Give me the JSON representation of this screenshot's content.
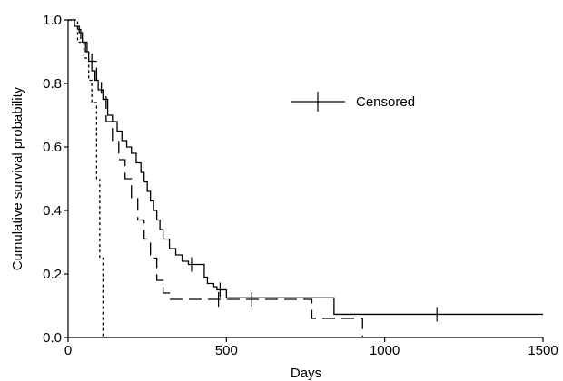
{
  "chart_data": {
    "type": "line",
    "subtype": "kaplan-meier step curves",
    "title": "",
    "xlabel": "Days",
    "ylabel": "Cumulative survival probability",
    "xlim": [
      0,
      1500
    ],
    "ylim": [
      0,
      1.0
    ],
    "x_ticks": [
      0,
      500,
      1000,
      1500
    ],
    "x_tick_labels": [
      "0",
      "500",
      "1000",
      "1500"
    ],
    "y_ticks": [
      0,
      0.2,
      0.4,
      0.6,
      0.8,
      1.0
    ],
    "y_tick_labels": [
      "0.0",
      "0.2",
      "0.4",
      "0.6",
      "0.8",
      "1.0"
    ],
    "grid": false,
    "legend": {
      "position": "upper-center",
      "entries": [
        {
          "label": "Censored",
          "marker": "vertical-tick"
        }
      ]
    },
    "series": [
      {
        "style": "solid",
        "color": "#000000",
        "x": [
          0,
          20,
          35,
          45,
          55,
          65,
          75,
          85,
          95,
          110,
          125,
          140,
          155,
          170,
          185,
          200,
          215,
          230,
          240,
          250,
          260,
          270,
          280,
          290,
          300,
          320,
          340,
          360,
          380,
          430,
          440,
          460,
          470,
          490,
          500,
          840,
          1500
        ],
        "y": [
          1.0,
          0.98,
          0.96,
          0.93,
          0.9,
          0.87,
          0.84,
          0.81,
          0.78,
          0.75,
          0.7,
          0.68,
          0.65,
          0.62,
          0.6,
          0.58,
          0.55,
          0.52,
          0.49,
          0.46,
          0.43,
          0.4,
          0.37,
          0.34,
          0.31,
          0.28,
          0.26,
          0.24,
          0.23,
          0.19,
          0.17,
          0.16,
          0.15,
          0.15,
          0.125,
          0.073,
          0.073
        ],
        "censor_x": [
          390,
          480,
          1165
        ],
        "censor_y": [
          0.23,
          0.15,
          0.073
        ]
      },
      {
        "style": "long-dash",
        "color": "#000000",
        "x": [
          0,
          20,
          40,
          60,
          75,
          90,
          105,
          120,
          140,
          160,
          180,
          200,
          220,
          240,
          260,
          280,
          300,
          320,
          770,
          860,
          930
        ],
        "y": [
          1.0,
          0.97,
          0.93,
          0.9,
          0.87,
          0.81,
          0.77,
          0.68,
          0.62,
          0.56,
          0.5,
          0.44,
          0.37,
          0.31,
          0.25,
          0.18,
          0.14,
          0.12,
          0.06,
          0.06,
          0.0
        ],
        "censor_x": [
          475,
          580
        ],
        "censor_y": [
          0.12,
          0.12
        ]
      },
      {
        "style": "short-dash",
        "color": "#000000",
        "x": [
          0,
          30,
          50,
          65,
          75,
          90,
          100,
          110,
          125
        ],
        "y": [
          1.0,
          0.93,
          0.88,
          0.81,
          0.74,
          0.5,
          0.25,
          0.0,
          0.0
        ]
      }
    ]
  }
}
